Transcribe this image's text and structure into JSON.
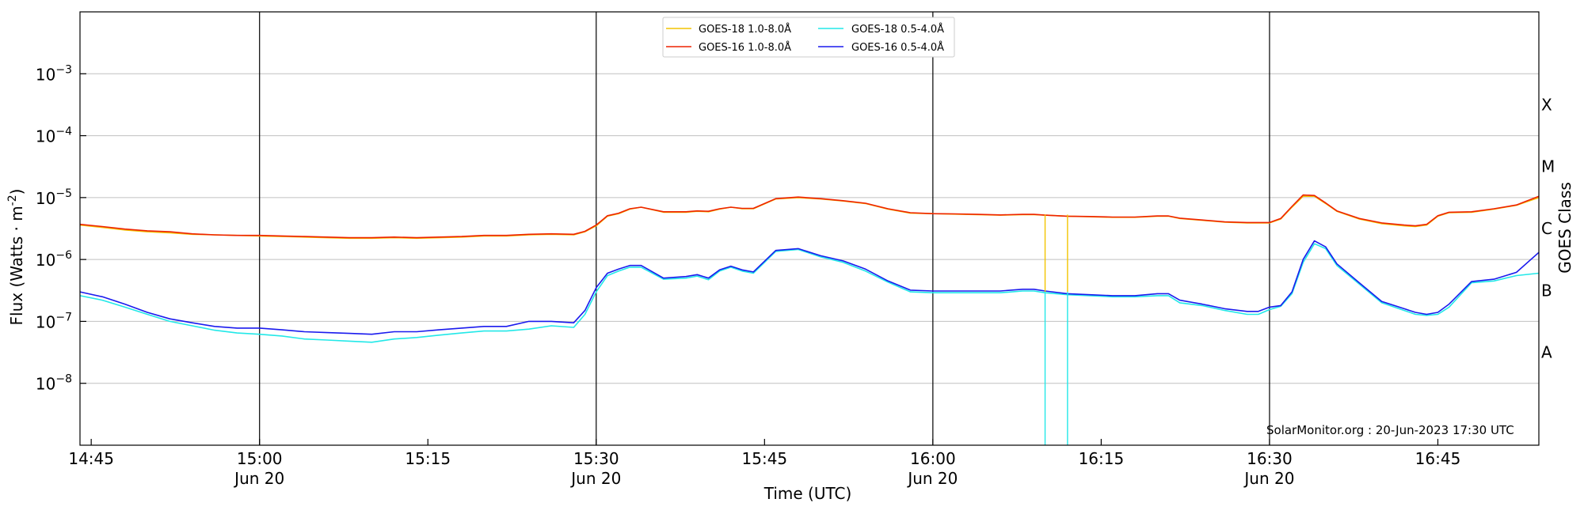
{
  "chart_data": {
    "type": "line",
    "title": "",
    "xlabel": "Time (UTC)",
    "ylabel": "Flux (Watts · m",
    "ylabel_sup": "-2",
    "ylabel_close": ")",
    "right_label": "GOES Class",
    "y_scale": "log",
    "ylim": [
      1e-09,
      0.01
    ],
    "xlim": [
      "14:44",
      "16:54"
    ],
    "grid": "horizontal at decades",
    "y_ticks": [
      {
        "value": 1e-08,
        "base": "10",
        "exp": "−8"
      },
      {
        "value": 1e-07,
        "base": "10",
        "exp": "−7"
      },
      {
        "value": 1e-06,
        "base": "10",
        "exp": "−6"
      },
      {
        "value": 1e-05,
        "base": "10",
        "exp": "−5"
      },
      {
        "value": 0.0001,
        "base": "10",
        "exp": "−4"
      },
      {
        "value": 0.001,
        "base": "10",
        "exp": "−3"
      }
    ],
    "x_ticks": [
      {
        "time": "14:45",
        "label": "14:45",
        "sub": ""
      },
      {
        "time": "15:00",
        "label": "15:00",
        "sub": "Jun 20"
      },
      {
        "time": "15:15",
        "label": "15:15",
        "sub": ""
      },
      {
        "time": "15:30",
        "label": "15:30",
        "sub": "Jun 20"
      },
      {
        "time": "15:45",
        "label": "15:45",
        "sub": ""
      },
      {
        "time": "16:00",
        "label": "16:00",
        "sub": "Jun 20"
      },
      {
        "time": "16:15",
        "label": "16:15",
        "sub": ""
      },
      {
        "time": "16:30",
        "label": "16:30",
        "sub": "Jun 20"
      },
      {
        "time": "16:45",
        "label": "16:45",
        "sub": ""
      }
    ],
    "vertical_lines": [
      "15:00",
      "15:30",
      "16:00",
      "16:30"
    ],
    "goes_classes": [
      {
        "label": "A",
        "value": 3.16e-08
      },
      {
        "label": "B",
        "value": 3.16e-07
      },
      {
        "label": "C",
        "value": 3.16e-06
      },
      {
        "label": "M",
        "value": 3.16e-05
      },
      {
        "label": "X",
        "value": 0.000316
      }
    ],
    "legend_placement": "top-center",
    "credit": "SolarMonitor.org : 20-Jun-2023 17:30 UTC",
    "x": [
      "14:44",
      "14:46",
      "14:48",
      "14:50",
      "14:52",
      "14:54",
      "14:56",
      "14:58",
      "15:00",
      "15:02",
      "15:04",
      "15:06",
      "15:08",
      "15:10",
      "15:12",
      "15:14",
      "15:16",
      "15:18",
      "15:20",
      "15:22",
      "15:24",
      "15:26",
      "15:28",
      "15:29",
      "15:30",
      "15:31",
      "15:32",
      "15:33",
      "15:34",
      "15:36",
      "15:38",
      "15:39",
      "15:40",
      "15:41",
      "15:42",
      "15:43",
      "15:44",
      "15:46",
      "15:48",
      "15:50",
      "15:52",
      "15:54",
      "15:56",
      "15:58",
      "16:00",
      "16:02",
      "16:04",
      "16:06",
      "16:08",
      "16:09",
      "16:10",
      "16:12",
      "16:14",
      "16:16",
      "16:18",
      "16:20",
      "16:21",
      "16:22",
      "16:24",
      "16:26",
      "16:28",
      "16:29",
      "16:30",
      "16:31",
      "16:32",
      "16:33",
      "16:34",
      "16:35",
      "16:36",
      "16:38",
      "16:40",
      "16:42",
      "16:43",
      "16:44",
      "16:45",
      "16:46",
      "16:48",
      "16:50",
      "16:52",
      "16:54"
    ],
    "series": [
      {
        "name": "GOES-18 1.0-8.0Å",
        "color": "#f2c400",
        "values": [
          3.6e-06,
          3.3e-06,
          3e-06,
          2.8e-06,
          2.7e-06,
          2.55e-06,
          2.5e-06,
          2.45e-06,
          2.4e-06,
          2.35e-06,
          2.3e-06,
          2.25e-06,
          2.2e-06,
          2.2e-06,
          2.25e-06,
          2.2e-06,
          2.25e-06,
          2.3e-06,
          2.4e-06,
          2.4e-06,
          2.5e-06,
          2.55e-06,
          2.5e-06,
          2.8e-06,
          3.5e-06,
          5e-06,
          5.5e-06,
          6.5e-06,
          7e-06,
          5.8e-06,
          5.8e-06,
          6e-06,
          5.9e-06,
          6.5e-06,
          7e-06,
          6.6e-06,
          6.6e-06,
          9.5e-06,
          1e-05,
          9.5e-06,
          8.8e-06,
          8e-06,
          6.5e-06,
          5.6e-06,
          5.5e-06,
          5.4e-06,
          5.3e-06,
          5.2e-06,
          5.3e-06,
          5.3e-06,
          5.2e-06,
          5e-06,
          4.9e-06,
          4.8e-06,
          4.8e-06,
          5e-06,
          5e-06,
          4.6e-06,
          4.3e-06,
          4e-06,
          3.9e-06,
          3.9e-06,
          3.9e-06,
          4.5e-06,
          7e-06,
          1.05e-05,
          1.05e-05,
          8e-06,
          6e-06,
          4.5e-06,
          3.8e-06,
          3.5e-06,
          3.4e-06,
          3.6e-06,
          5e-06,
          5.7e-06,
          5.8e-06,
          6.5e-06,
          7.5e-06,
          1e-05
        ]
      },
      {
        "name": "GOES-18 0.5-4.0Å",
        "color": "#22e8e8",
        "values": [
          2.6e-07,
          2.2e-07,
          1.7e-07,
          1.3e-07,
          1e-07,
          8.5e-08,
          7.2e-08,
          6.5e-08,
          6.2e-08,
          5.8e-08,
          5.2e-08,
          5e-08,
          4.8e-08,
          4.6e-08,
          5.2e-08,
          5.5e-08,
          6e-08,
          6.5e-08,
          7e-08,
          7e-08,
          7.5e-08,
          8.5e-08,
          8e-08,
          1.3e-07,
          3e-07,
          5.5e-07,
          6.5e-07,
          7.5e-07,
          7.5e-07,
          4.8e-07,
          5e-07,
          5.4e-07,
          4.7e-07,
          6.5e-07,
          7.5e-07,
          6.5e-07,
          6e-07,
          1.35e-06,
          1.45e-06,
          1.1e-06,
          9e-07,
          6.5e-07,
          4.3e-07,
          3e-07,
          2.9e-07,
          2.9e-07,
          2.9e-07,
          2.9e-07,
          3.1e-07,
          3.1e-07,
          2.9e-07,
          2.7e-07,
          2.6e-07,
          2.5e-07,
          2.5e-07,
          2.6e-07,
          2.6e-07,
          2e-07,
          1.8e-07,
          1.5e-07,
          1.3e-07,
          1.3e-07,
          1.55e-07,
          1.75e-07,
          2.8e-07,
          9e-07,
          1.8e-06,
          1.5e-06,
          8e-07,
          4e-07,
          2e-07,
          1.5e-07,
          1.3e-07,
          1.25e-07,
          1.3e-07,
          1.7e-07,
          4.2e-07,
          4.5e-07,
          5.5e-07,
          6e-07
        ]
      },
      {
        "name": "GOES-16 1.0-8.0Å",
        "color": "#ee2200",
        "values": [
          3.7e-06,
          3.4e-06,
          3.1e-06,
          2.9e-06,
          2.8e-06,
          2.6e-06,
          2.5e-06,
          2.45e-06,
          2.45e-06,
          2.4e-06,
          2.35e-06,
          2.3e-06,
          2.25e-06,
          2.25e-06,
          2.3e-06,
          2.25e-06,
          2.3e-06,
          2.35e-06,
          2.45e-06,
          2.45e-06,
          2.55e-06,
          2.6e-06,
          2.55e-06,
          2.85e-06,
          3.6e-06,
          5.1e-06,
          5.6e-06,
          6.6e-06,
          7e-06,
          5.9e-06,
          5.9e-06,
          6.1e-06,
          6e-06,
          6.6e-06,
          7e-06,
          6.7e-06,
          6.7e-06,
          9.6e-06,
          1.02e-05,
          9.6e-06,
          8.9e-06,
          8.1e-06,
          6.6e-06,
          5.7e-06,
          5.5e-06,
          5.45e-06,
          5.35e-06,
          5.25e-06,
          5.35e-06,
          5.35e-06,
          5.2e-06,
          5e-06,
          4.95e-06,
          4.85e-06,
          4.85e-06,
          5.05e-06,
          5.05e-06,
          4.65e-06,
          4.35e-06,
          4.05e-06,
          3.95e-06,
          3.95e-06,
          3.95e-06,
          4.6e-06,
          7.2e-06,
          1.1e-05,
          1.08e-05,
          8.2e-06,
          6.1e-06,
          4.6e-06,
          3.9e-06,
          3.6e-06,
          3.5e-06,
          3.7e-06,
          5.1e-06,
          5.8e-06,
          5.9e-06,
          6.6e-06,
          7.6e-06,
          1.05e-05
        ]
      },
      {
        "name": "GOES-16 0.5-4.0Å",
        "color": "#1a1aee",
        "values": [
          3e-07,
          2.5e-07,
          1.9e-07,
          1.4e-07,
          1.1e-07,
          9.5e-08,
          8.3e-08,
          7.8e-08,
          7.8e-08,
          7.3e-08,
          6.8e-08,
          6.6e-08,
          6.4e-08,
          6.2e-08,
          6.8e-08,
          6.8e-08,
          7.3e-08,
          7.8e-08,
          8.3e-08,
          8.3e-08,
          1e-07,
          1e-07,
          9.5e-08,
          1.5e-07,
          3.5e-07,
          6e-07,
          7e-07,
          8e-07,
          8e-07,
          5e-07,
          5.3e-07,
          5.7e-07,
          5e-07,
          6.8e-07,
          7.8e-07,
          6.8e-07,
          6.3e-07,
          1.4e-06,
          1.5e-06,
          1.15e-06,
          9.5e-07,
          7e-07,
          4.5e-07,
          3.2e-07,
          3.1e-07,
          3.1e-07,
          3.1e-07,
          3.1e-07,
          3.3e-07,
          3.3e-07,
          3.1e-07,
          2.8e-07,
          2.7e-07,
          2.6e-07,
          2.6e-07,
          2.8e-07,
          2.8e-07,
          2.2e-07,
          1.9e-07,
          1.6e-07,
          1.45e-07,
          1.45e-07,
          1.7e-07,
          1.8e-07,
          3e-07,
          1e-06,
          2e-06,
          1.6e-06,
          8.5e-07,
          4.2e-07,
          2.1e-07,
          1.6e-07,
          1.4e-07,
          1.3e-07,
          1.4e-07,
          1.9e-07,
          4.4e-07,
          4.8e-07,
          6.2e-07,
          1.3e-06
        ]
      }
    ],
    "spikes": [
      {
        "time": "16:10",
        "top": 5.3e-06,
        "bottom": 1e-09,
        "upper_color": "#f2c400",
        "lower_color": "#22e8e8"
      },
      {
        "time": "16:12",
        "top": 5.3e-06,
        "bottom": 1e-09,
        "upper_color": "#f2c400",
        "lower_color": "#22e8e8"
      }
    ]
  }
}
